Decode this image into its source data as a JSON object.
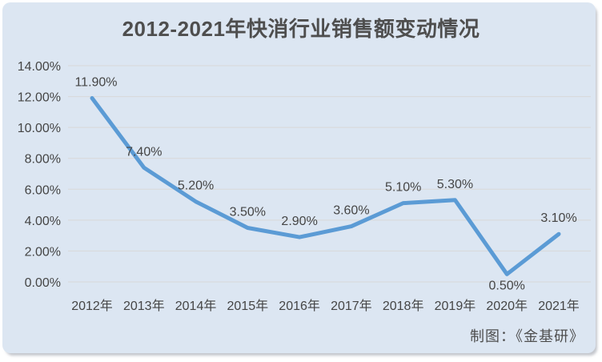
{
  "page": {
    "title": "2012-2021年快消行业销售额变动情况",
    "credit": "制图：《金基研》"
  },
  "colors": {
    "surface": "#dce6f2",
    "line": "#5b9bd5",
    "grid": "#d8d8d8",
    "text": "#454545"
  },
  "chart_data": {
    "type": "line",
    "title": "2012-2021年快消行业销售额变动情况",
    "categories": [
      "2012年",
      "2013年",
      "2014年",
      "2015年",
      "2016年",
      "2017年",
      "2018年",
      "2019年",
      "2020年",
      "2021年"
    ],
    "values": [
      11.9,
      7.4,
      5.2,
      3.5,
      2.9,
      3.6,
      5.1,
      5.3,
      0.5,
      3.1
    ],
    "data_labels": [
      "11.90%",
      "7.40%",
      "5.20%",
      "3.50%",
      "2.90%",
      "3.60%",
      "5.10%",
      "5.30%",
      "0.50%",
      "3.10%"
    ],
    "label_placement": [
      "above",
      "above",
      "above",
      "above",
      "above",
      "above",
      "above",
      "above",
      "below",
      "above"
    ],
    "ytick_labels": [
      "14.00%",
      "12.00%",
      "10.00%",
      "8.00%",
      "6.00%",
      "4.00%",
      "2.00%",
      "0.00%"
    ],
    "ylim": [
      0,
      14
    ],
    "ytick_step": 2,
    "xlabel": "",
    "ylabel": "",
    "grid": true,
    "legend": "none",
    "line_color": "#5b9bd5",
    "credit": "制图：《金基研》"
  }
}
